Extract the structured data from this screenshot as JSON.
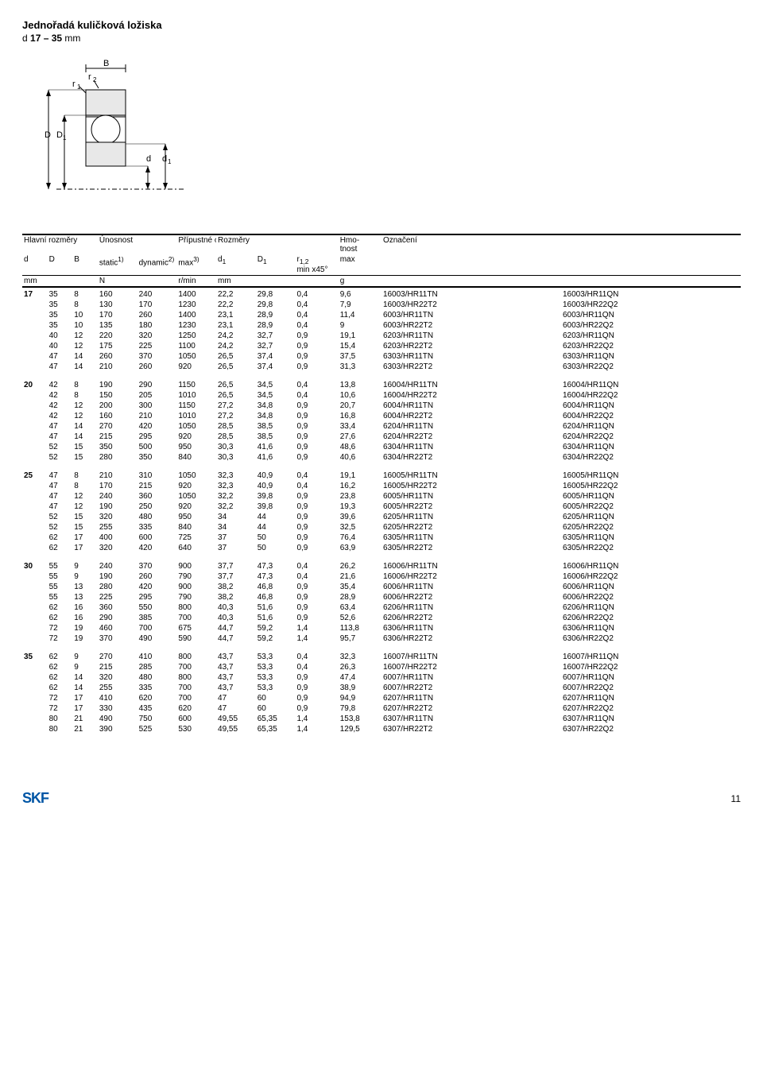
{
  "page": {
    "title": "Jednořadá kuličková ložiska",
    "subtitle_prefix": "d ",
    "subtitle_range": "17 – 35",
    "subtitle_unit": " mm",
    "page_number": "11",
    "logo_text": "SKF"
  },
  "headers": {
    "main_dims": "Hlavní rozměry",
    "load": "Únosnost",
    "speed": "Přípustné otáčky",
    "dims": "Rozměry",
    "mass": "Hmo-\ntnost",
    "designation": "Označení",
    "d": "d",
    "D": "D",
    "B": "B",
    "static": "static",
    "static_sup": "1)",
    "dynamic": "dynamic",
    "dynamic_sup": "2)",
    "max": "max",
    "max_sup": "3)",
    "d1": "d",
    "d1_sub": "1",
    "D1": "D",
    "D1_sub": "1",
    "r12": "r",
    "r12_sub": "1,2",
    "r12_extra": "min x45°",
    "max_col": "max",
    "unit_mm": "mm",
    "unit_N": "N",
    "unit_rmin": "r/min",
    "unit_g": "g"
  },
  "diagram": {
    "r1": "r",
    "r1_sub": "1",
    "r2": "r",
    "r2_sub": "2",
    "B": "B",
    "D": "D",
    "D1": "D",
    "D1_sub": "1",
    "d": "d",
    "d1": "d",
    "d1_sub": "1"
  },
  "groups": [
    {
      "d": "17",
      "rows": [
        [
          "35",
          "8",
          "160",
          "240",
          "1400",
          "22,2",
          "29,8",
          "0,4",
          "9,6",
          "16003/HR11TN",
          "16003/HR11QN"
        ],
        [
          "35",
          "8",
          "130",
          "170",
          "1230",
          "22,2",
          "29,8",
          "0,4",
          "7,9",
          "16003/HR22T2",
          "16003/HR22Q2"
        ],
        [
          "35",
          "10",
          "170",
          "260",
          "1400",
          "23,1",
          "28,9",
          "0,4",
          "11,4",
          "6003/HR11TN",
          "6003/HR11QN"
        ],
        [
          "35",
          "10",
          "135",
          "180",
          "1230",
          "23,1",
          "28,9",
          "0,4",
          "9",
          "6003/HR22T2",
          "6003/HR22Q2"
        ],
        [
          "40",
          "12",
          "220",
          "320",
          "1250",
          "24,2",
          "32,7",
          "0,9",
          "19,1",
          "6203/HR11TN",
          "6203/HR11QN"
        ],
        [
          "40",
          "12",
          "175",
          "225",
          "1100",
          "24,2",
          "32,7",
          "0,9",
          "15,4",
          "6203/HR22T2",
          "6203/HR22Q2"
        ],
        [
          "47",
          "14",
          "260",
          "370",
          "1050",
          "26,5",
          "37,4",
          "0,9",
          "37,5",
          "6303/HR11TN",
          "6303/HR11QN"
        ],
        [
          "47",
          "14",
          "210",
          "260",
          "920",
          "26,5",
          "37,4",
          "0,9",
          "31,3",
          "6303/HR22T2",
          "6303/HR22Q2"
        ]
      ]
    },
    {
      "d": "20",
      "rows": [
        [
          "42",
          "8",
          "190",
          "290",
          "1150",
          "26,5",
          "34,5",
          "0,4",
          "13,8",
          "16004/HR11TN",
          "16004/HR11QN"
        ],
        [
          "42",
          "8",
          "150",
          "205",
          "1010",
          "26,5",
          "34,5",
          "0,4",
          "10,6",
          "16004/HR22T2",
          "16004/HR22Q2"
        ],
        [
          "42",
          "12",
          "200",
          "300",
          "1150",
          "27,2",
          "34,8",
          "0,9",
          "20,7",
          "6004/HR11TN",
          "6004/HR11QN"
        ],
        [
          "42",
          "12",
          "160",
          "210",
          "1010",
          "27,2",
          "34,8",
          "0,9",
          "16,8",
          "6004/HR22T2",
          "6004/HR22Q2"
        ],
        [
          "47",
          "14",
          "270",
          "420",
          "1050",
          "28,5",
          "38,5",
          "0,9",
          "33,4",
          "6204/HR11TN",
          "6204/HR11QN"
        ],
        [
          "47",
          "14",
          "215",
          "295",
          "920",
          "28,5",
          "38,5",
          "0,9",
          "27,6",
          "6204/HR22T2",
          "6204/HR22Q2"
        ],
        [
          "52",
          "15",
          "350",
          "500",
          "950",
          "30,3",
          "41,6",
          "0,9",
          "48,6",
          "6304/HR11TN",
          "6304/HR11QN"
        ],
        [
          "52",
          "15",
          "280",
          "350",
          "840",
          "30,3",
          "41,6",
          "0,9",
          "40,6",
          "6304/HR22T2",
          "6304/HR22Q2"
        ]
      ]
    },
    {
      "d": "25",
      "rows": [
        [
          "47",
          "8",
          "210",
          "310",
          "1050",
          "32,3",
          "40,9",
          "0,4",
          "19,1",
          "16005/HR11TN",
          "16005/HR11QN"
        ],
        [
          "47",
          "8",
          "170",
          "215",
          "920",
          "32,3",
          "40,9",
          "0,4",
          "16,2",
          "16005/HR22T2",
          "16005/HR22Q2"
        ],
        [
          "47",
          "12",
          "240",
          "360",
          "1050",
          "32,2",
          "39,8",
          "0,9",
          "23,8",
          "6005/HR11TN",
          "6005/HR11QN"
        ],
        [
          "47",
          "12",
          "190",
          "250",
          "920",
          "32,2",
          "39,8",
          "0,9",
          "19,3",
          "6005/HR22T2",
          "6005/HR22Q2"
        ],
        [
          "52",
          "15",
          "320",
          "480",
          "950",
          "34",
          "44",
          "0,9",
          "39,6",
          "6205/HR11TN",
          "6205/HR11QN"
        ],
        [
          "52",
          "15",
          "255",
          "335",
          "840",
          "34",
          "44",
          "0,9",
          "32,5",
          "6205/HR22T2",
          "6205/HR22Q2"
        ],
        [
          "62",
          "17",
          "400",
          "600",
          "725",
          "37",
          "50",
          "0,9",
          "76,4",
          "6305/HR11TN",
          "6305/HR11QN"
        ],
        [
          "62",
          "17",
          "320",
          "420",
          "640",
          "37",
          "50",
          "0,9",
          "63,9",
          "6305/HR22T2",
          "6305/HR22Q2"
        ]
      ]
    },
    {
      "d": "30",
      "rows": [
        [
          "55",
          "9",
          "240",
          "370",
          "900",
          "37,7",
          "47,3",
          "0,4",
          "26,2",
          "16006/HR11TN",
          "16006/HR11QN"
        ],
        [
          "55",
          "9",
          "190",
          "260",
          "790",
          "37,7",
          "47,3",
          "0,4",
          "21,6",
          "16006/HR22T2",
          "16006/HR22Q2"
        ],
        [
          "55",
          "13",
          "280",
          "420",
          "900",
          "38,2",
          "46,8",
          "0,9",
          "35,4",
          "6006/HR11TN",
          "6006/HR11QN"
        ],
        [
          "55",
          "13",
          "225",
          "295",
          "790",
          "38,2",
          "46,8",
          "0,9",
          "28,9",
          "6006/HR22T2",
          "6006/HR22Q2"
        ],
        [
          "62",
          "16",
          "360",
          "550",
          "800",
          "40,3",
          "51,6",
          "0,9",
          "63,4",
          "6206/HR11TN",
          "6206/HR11QN"
        ],
        [
          "62",
          "16",
          "290",
          "385",
          "700",
          "40,3",
          "51,6",
          "0,9",
          "52,6",
          "6206/HR22T2",
          "6206/HR22Q2"
        ],
        [
          "72",
          "19",
          "460",
          "700",
          "675",
          "44,7",
          "59,2",
          "1,4",
          "113,8",
          "6306/HR11TN",
          "6306/HR11QN"
        ],
        [
          "72",
          "19",
          "370",
          "490",
          "590",
          "44,7",
          "59,2",
          "1,4",
          "95,7",
          "6306/HR22T2",
          "6306/HR22Q2"
        ]
      ]
    },
    {
      "d": "35",
      "rows": [
        [
          "62",
          "9",
          "270",
          "410",
          "800",
          "43,7",
          "53,3",
          "0,4",
          "32,3",
          "16007/HR11TN",
          "16007/HR11QN"
        ],
        [
          "62",
          "9",
          "215",
          "285",
          "700",
          "43,7",
          "53,3",
          "0,4",
          "26,3",
          "16007/HR22T2",
          "16007/HR22Q2"
        ],
        [
          "62",
          "14",
          "320",
          "480",
          "800",
          "43,7",
          "53,3",
          "0,9",
          "47,4",
          "6007/HR11TN",
          "6007/HR11QN"
        ],
        [
          "62",
          "14",
          "255",
          "335",
          "700",
          "43,7",
          "53,3",
          "0,9",
          "38,9",
          "6007/HR22T2",
          "6007/HR22Q2"
        ],
        [
          "72",
          "17",
          "410",
          "620",
          "700",
          "47",
          "60",
          "0,9",
          "94,9",
          "6207/HR11TN",
          "6207/HR11QN"
        ],
        [
          "72",
          "17",
          "330",
          "435",
          "620",
          "47",
          "60",
          "0,9",
          "79,8",
          "6207/HR22T2",
          "6207/HR22Q2"
        ],
        [
          "80",
          "21",
          "490",
          "750",
          "600",
          "49,55",
          "65,35",
          "1,4",
          "153,8",
          "6307/HR11TN",
          "6307/HR11QN"
        ],
        [
          "80",
          "21",
          "390",
          "525",
          "530",
          "49,55",
          "65,35",
          "1,4",
          "129,5",
          "6307/HR22T2",
          "6307/HR22Q2"
        ]
      ]
    }
  ]
}
